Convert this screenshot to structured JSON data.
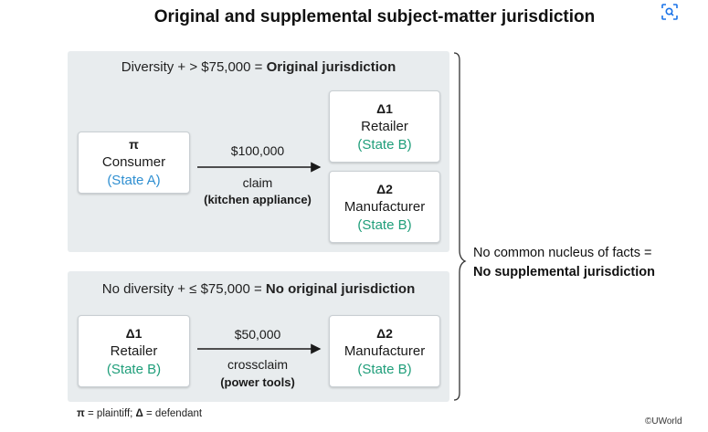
{
  "title": "Original and supplemental subject-matter jurisdiction",
  "top": {
    "heading_prefix": "Diversity + > $75,000 = ",
    "heading_bold": "Original jurisdiction",
    "plaintiff": {
      "symbol": "π",
      "role": "Consumer",
      "state": "(State A)"
    },
    "arrow_amount": "$100,000",
    "arrow_type": "claim",
    "arrow_subject": "(kitchen appliance)",
    "d1": {
      "symbol": "Δ1",
      "role": "Retailer",
      "state": "(State B)"
    },
    "d2": {
      "symbol": "Δ2",
      "role": "Manufacturer",
      "state": "(State B)"
    }
  },
  "bottom": {
    "heading_prefix": "No diversity + ≤ $75,000 = ",
    "heading_bold": "No original jurisdiction",
    "left": {
      "symbol": "Δ1",
      "role": "Retailer",
      "state": "(State B)"
    },
    "arrow_amount": "$50,000",
    "arrow_type": "crossclaim",
    "arrow_subject": "(power tools)",
    "right": {
      "symbol": "Δ2",
      "role": "Manufacturer",
      "state": "(State B)"
    }
  },
  "note": {
    "line1": "No common nucleus of facts =",
    "line2": "No supplemental jurisdiction"
  },
  "legend": {
    "pi_sym": "π",
    "pi_text": " = plaintiff; ",
    "delta_sym": "Δ",
    "delta_text": " = defendant"
  },
  "copyright": "©UWorld",
  "colors": {
    "state_a": "#2f8fd1",
    "state_b": "#1f9e7a",
    "panel": "#e8ecee"
  },
  "icons": {
    "lens": "image-search-icon"
  }
}
